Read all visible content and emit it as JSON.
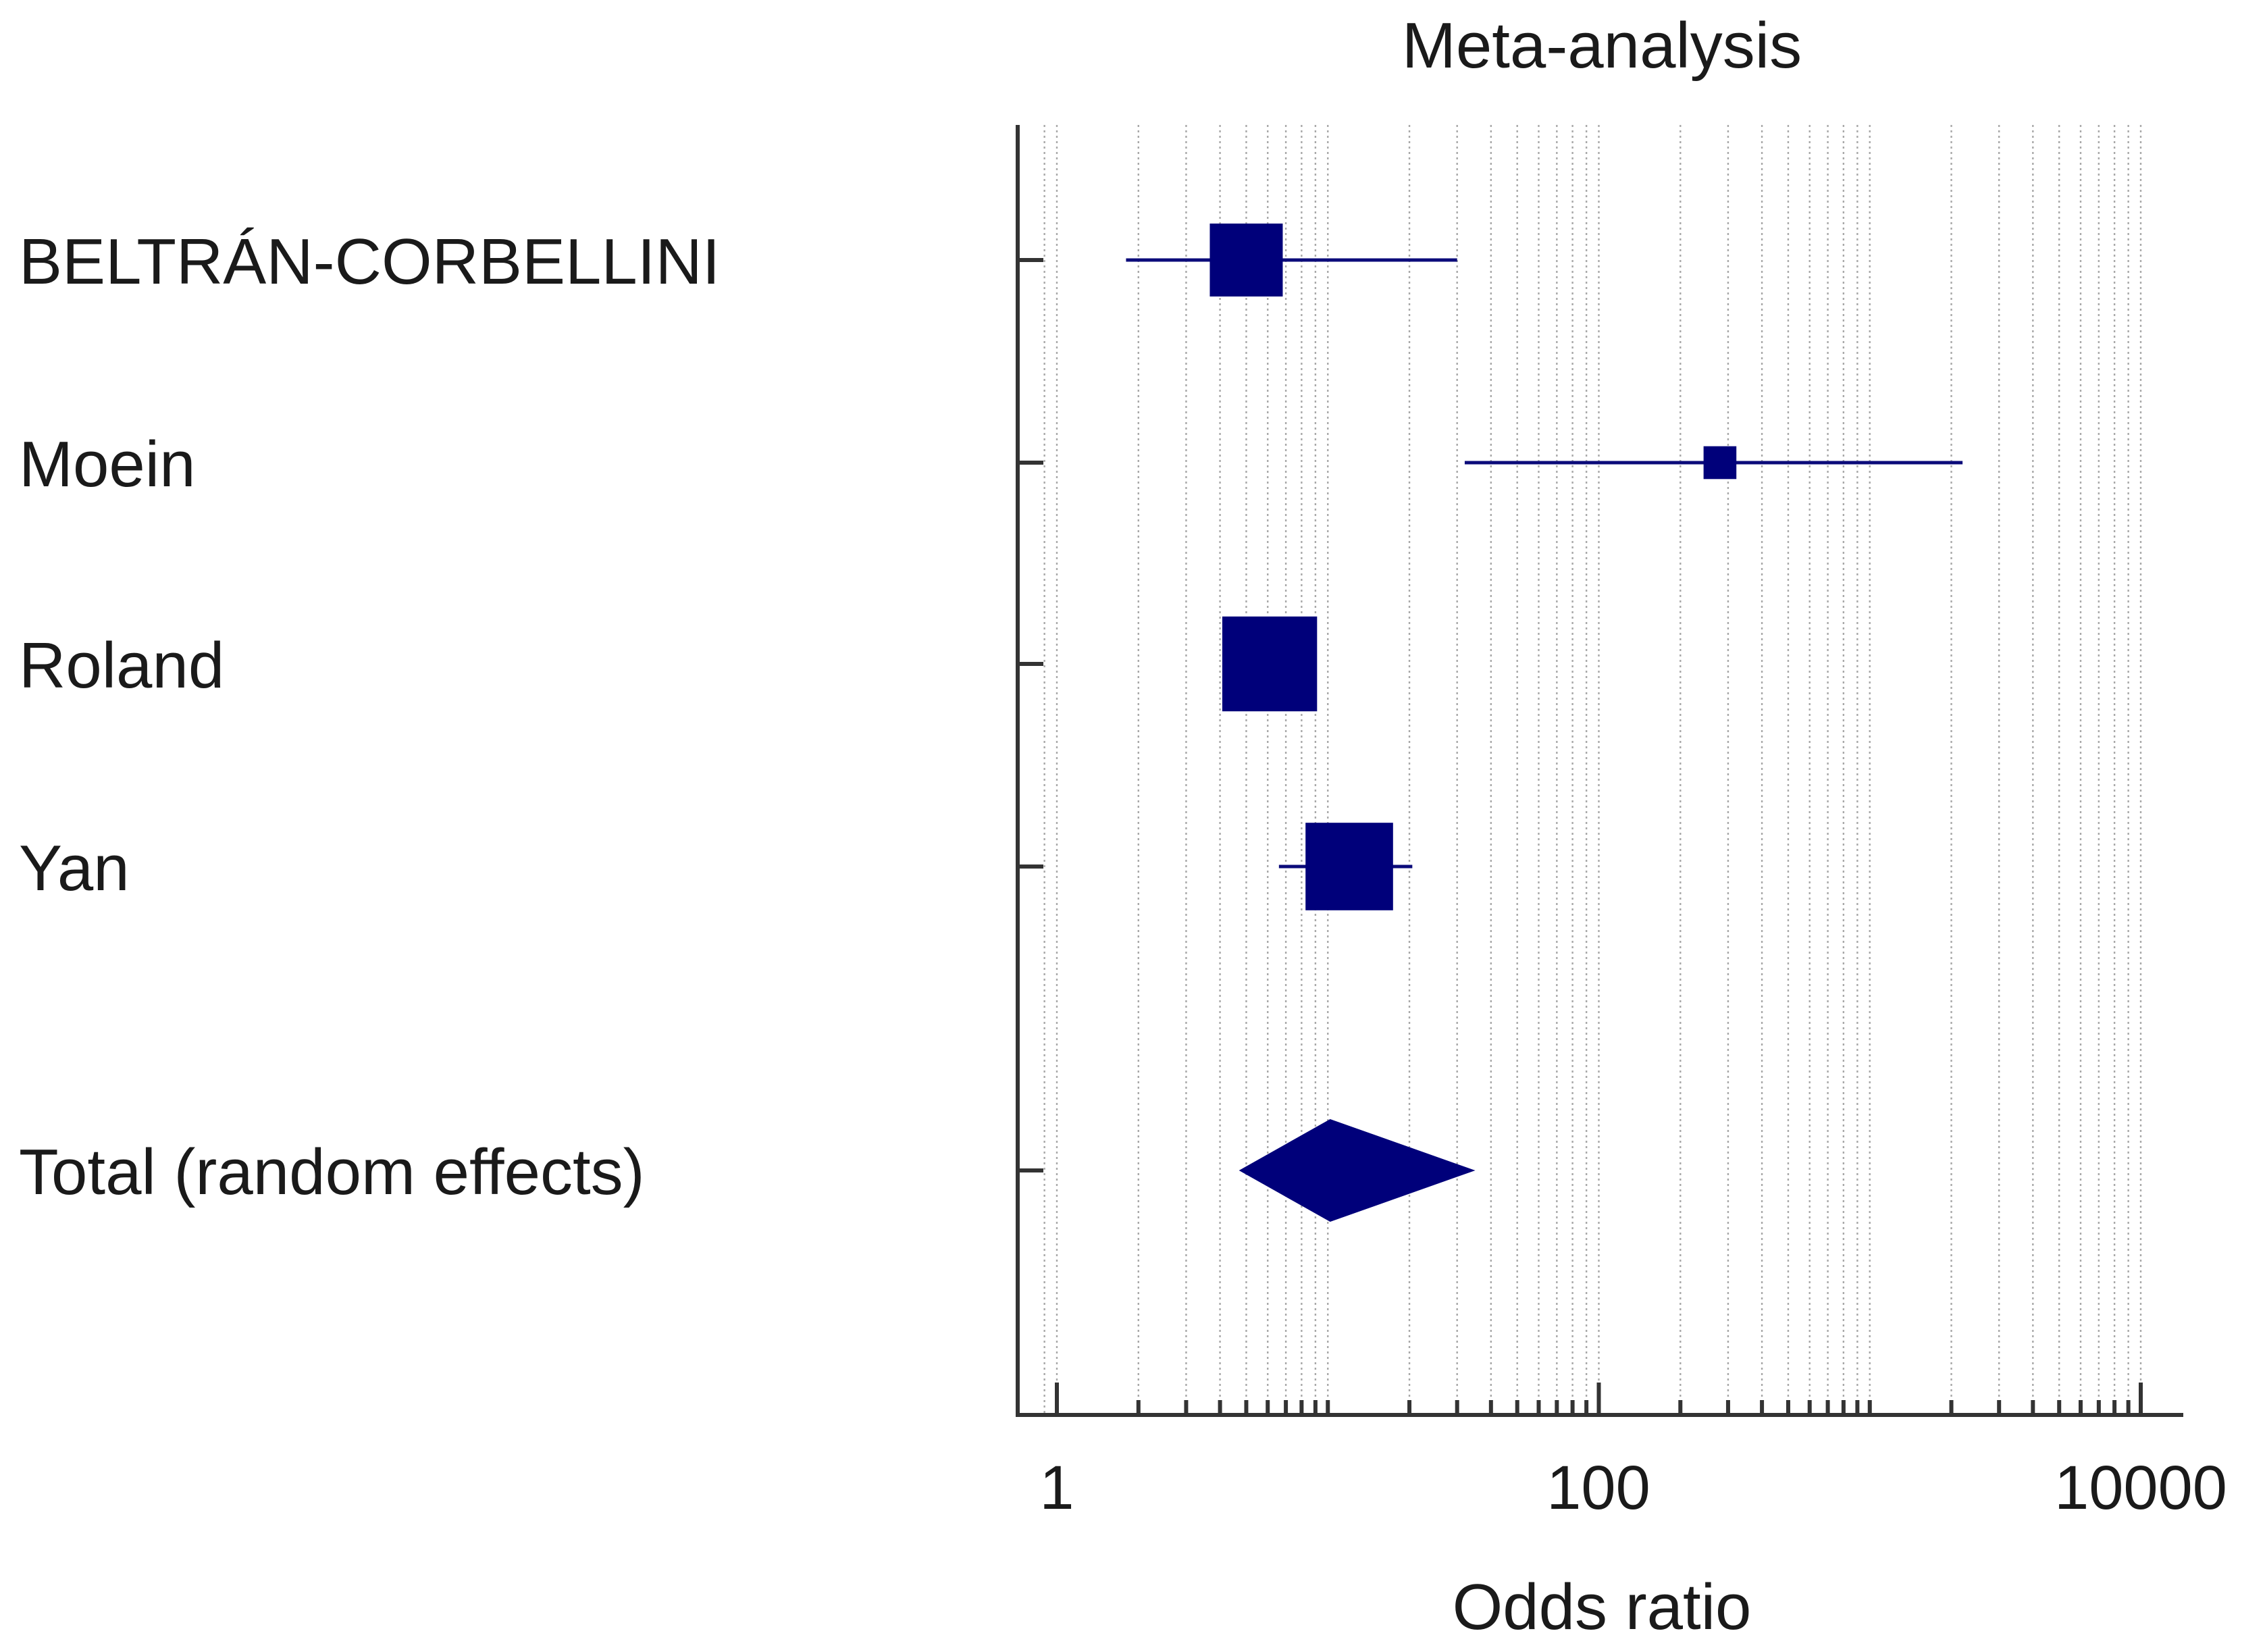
{
  "chart_data": {
    "type": "forest",
    "title": "Meta-analysis",
    "xlabel": "Odds ratio",
    "xscale": "log",
    "xlim": [
      0.9,
      13500
    ],
    "xticks": [
      1,
      100,
      10000
    ],
    "xtick_labels": [
      "1",
      "100",
      "10000"
    ],
    "marker_color": "#00007a",
    "studies": [
      {
        "label": "BELTRÁN-CORBELLINI",
        "or": 5.0,
        "ci": [
          1.8,
          30.0
        ],
        "weight": 1.0
      },
      {
        "label": "Moein",
        "or": 280,
        "ci": [
          32,
          2200
        ],
        "weight": 0.45
      },
      {
        "label": "Roland",
        "or": 6.1,
        "ci": [
          4.5,
          8.8
        ],
        "weight": 1.3
      },
      {
        "label": "Yan",
        "or": 12.0,
        "ci": [
          6.6,
          20.5
        ],
        "weight": 1.2
      }
    ],
    "pooled": {
      "label": "Total (random effects)",
      "or": 10.2,
      "ci": [
        4.7,
        35.0
      ]
    }
  }
}
